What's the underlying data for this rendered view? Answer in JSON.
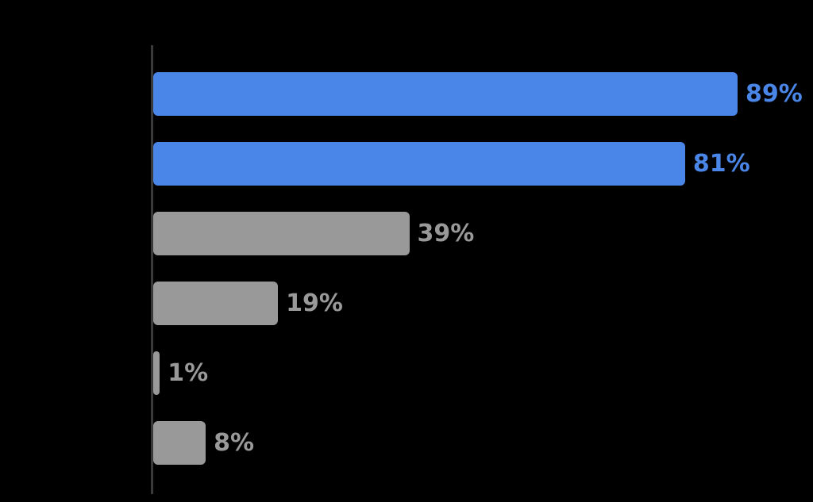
{
  "chart_data": {
    "type": "bar",
    "orientation": "horizontal",
    "title": "",
    "xlabel": "",
    "ylabel": "",
    "xlim": [
      0,
      100
    ],
    "grid": false,
    "legend": false,
    "category_labels_visible": false,
    "values": [
      89,
      81,
      39,
      19,
      1,
      8
    ],
    "data_labels": [
      "89%",
      "81%",
      "39%",
      "19%",
      "1%",
      "8%"
    ],
    "bar_colors": [
      "#4a86e8",
      "#4a86e8",
      "#999999",
      "#999999",
      "#999999",
      "#999999"
    ],
    "label_colors": [
      "#4a86e8",
      "#4a86e8",
      "#999999",
      "#999999",
      "#999999",
      "#999999"
    ]
  },
  "colors": {
    "background": "#000000",
    "accent_blue": "#4a86e8",
    "muted_gray": "#999999",
    "axis_line": "#3a3a3a"
  }
}
